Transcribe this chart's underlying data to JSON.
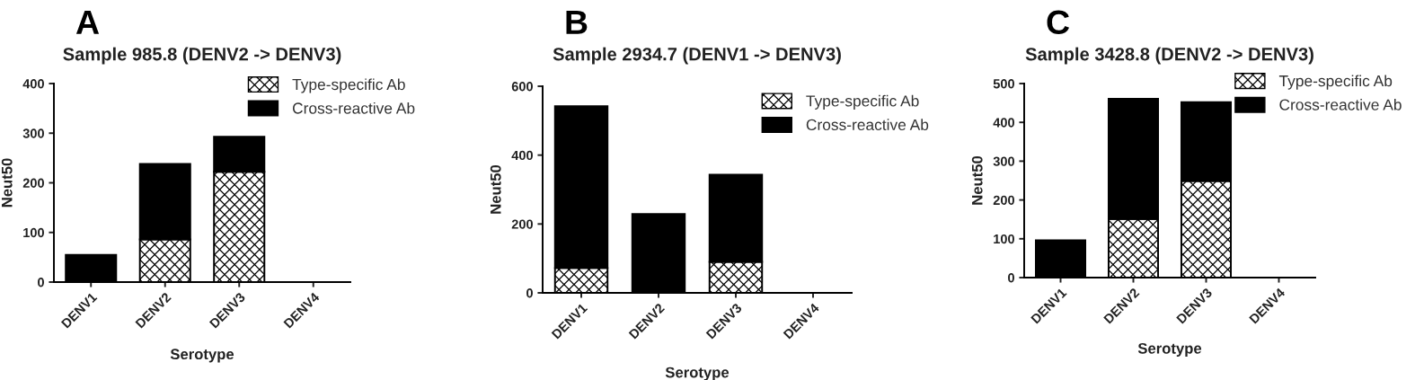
{
  "chart_data": [
    {
      "type": "bar",
      "title": "A",
      "subtitle": "Sample 985.8 (DENV2 -> DENV3)",
      "xlabel": "Serotype",
      "ylabel": "Neut50",
      "categories": [
        "DENV1",
        "DENV2",
        "DENV3",
        "DENV4"
      ],
      "stacked": true,
      "series": [
        {
          "name": "Type-specific Ab",
          "color": "#000000",
          "values": [
            0,
            86,
            222,
            0
          ]
        },
        {
          "name": "Cross-reactive Ab",
          "color": "#000000",
          "values": [
            55,
            152,
            71,
            0
          ]
        }
      ],
      "ylim": [
        0,
        400
      ],
      "yticks": [
        0,
        100,
        200,
        300,
        400
      ],
      "legend": "top right"
    },
    {
      "type": "bar",
      "title": "B",
      "subtitle": "Sample 2934.7 (DENV1 -> DENV3)",
      "xlabel": "Serotype",
      "ylabel": "Neut50",
      "categories": [
        "DENV1",
        "DENV2",
        "DENV3",
        "DENV4"
      ],
      "stacked": true,
      "series": [
        {
          "name": "Type-specific Ab",
          "color": "#000000",
          "values": [
            72,
            0,
            90,
            0
          ]
        },
        {
          "name": "Cross-reactive Ab",
          "color": "#000000",
          "values": [
            470,
            229,
            253,
            0
          ]
        }
      ],
      "ylim": [
        0,
        600
      ],
      "yticks": [
        0,
        200,
        400,
        600
      ],
      "legend": "top right"
    },
    {
      "type": "bar",
      "title": "C",
      "subtitle": "Sample 3428.8 (DENV2 -> DENV3)",
      "xlabel": "Serotype",
      "ylabel": "Neut50",
      "categories": [
        "DENV1",
        "DENV2",
        "DENV3",
        "DENV4"
      ],
      "stacked": true,
      "series": [
        {
          "name": "Type-specific Ab",
          "color": "#000000",
          "values": [
            0,
            151,
            249,
            0
          ]
        },
        {
          "name": "Cross-reactive Ab",
          "color": "#000000",
          "values": [
            96,
            310,
            203,
            0
          ]
        }
      ],
      "ylim": [
        0,
        500
      ],
      "yticks": [
        0,
        100,
        200,
        300,
        400,
        500
      ],
      "legend": "top right"
    }
  ]
}
